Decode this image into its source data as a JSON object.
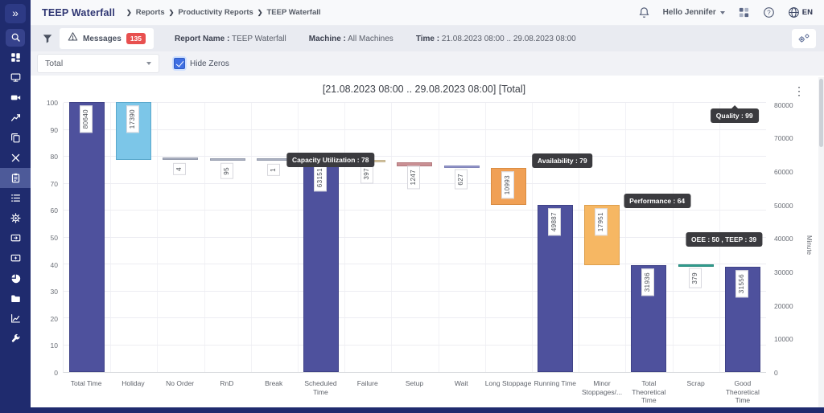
{
  "theme": {
    "sidebar-bg": "#1f2b6e",
    "sidebar-active-bg": "#4d5a99",
    "header-bg": "#f8f9fb",
    "toolbar-bg": "#e9ebf1",
    "page-bg": "#f1f2f6",
    "badge-red": "#e8504f",
    "checkbox-blue": "#3f6fe3",
    "tooltip-bg": "#3b3b3f",
    "title-navy": "#2e3572"
  },
  "header": {
    "title": "TEEP Waterfall",
    "breadcrumb": [
      "Reports",
      "Productivity Reports",
      "TEEP Waterfall"
    ],
    "greeting": "Hello Jennifer",
    "language": "EN"
  },
  "sidebar": {
    "expand_glyph": "»",
    "items": [
      {
        "icon": "search",
        "highlight": true
      },
      {
        "icon": "dashboard"
      },
      {
        "icon": "monitor"
      },
      {
        "icon": "video-camera"
      },
      {
        "icon": "trend-chart"
      },
      {
        "icon": "copy"
      },
      {
        "icon": "tools"
      },
      {
        "icon": "report-clipboard",
        "active": true
      },
      {
        "icon": "list"
      },
      {
        "icon": "settings"
      },
      {
        "icon": "screen-session"
      },
      {
        "icon": "screen-add"
      },
      {
        "icon": "pie-chart"
      },
      {
        "icon": "folder"
      },
      {
        "icon": "analytics"
      },
      {
        "icon": "wrench"
      }
    ]
  },
  "toolbar": {
    "messages_label": "Messages",
    "messages_count": "135",
    "info": [
      {
        "label": "Report Name :",
        "value": "TEEP Waterfall"
      },
      {
        "label": "Machine :",
        "value": "All Machines"
      },
      {
        "label": "Time :",
        "value": "21.08.2023 08:00 .. 29.08.2023 08:00"
      }
    ]
  },
  "filters": {
    "group_by_value": "Total",
    "hide_zeros_label": "Hide Zeros",
    "hide_zeros_checked": true
  },
  "chart_data": {
    "type": "bar",
    "subtype": "waterfall",
    "title": "[21.08.2023 08:00 .. 29.08.2023 08:00] [Total]",
    "menu_glyph": "⋮",
    "y_left": {
      "min": 0,
      "max": 100,
      "ticks": [
        100,
        90,
        80,
        70,
        60,
        50,
        40,
        30,
        20,
        10,
        0
      ]
    },
    "y_right": {
      "label": "Minute",
      "min": 0,
      "max": 80640,
      "ticks": [
        80000,
        70000,
        60000,
        50000,
        40000,
        30000,
        20000,
        10000,
        0
      ]
    },
    "bars": [
      {
        "category": "Total Time",
        "value": 80640,
        "label": "80640",
        "from": 0,
        "to": 80640,
        "color": "#4e519d",
        "border": "#3f4287"
      },
      {
        "category": "Holiday",
        "value": 17390,
        "label": "17390",
        "from": 80640,
        "to": 63250,
        "color": "#7cc6e8",
        "border": "#5aa8cc"
      },
      {
        "category": "No Order",
        "value": 4,
        "label": "4",
        "from": 63250,
        "to": 63246,
        "color": "#aab0c0",
        "border": "#969cae"
      },
      {
        "category": "RnD",
        "value": 95,
        "label": "95",
        "from": 63246,
        "to": 63151,
        "color": "#aab0c0",
        "border": "#969cae"
      },
      {
        "category": "Break",
        "value": 1,
        "label": "1",
        "from": 63151,
        "to": 63150,
        "color": "#aab0c0",
        "border": "#969cae"
      },
      {
        "category": "Scheduled Time",
        "value": 63151,
        "label": "63151",
        "from": 63151,
        "to": 0,
        "color": "#4e519d",
        "border": "#3f4287"
      },
      {
        "category": "Failure",
        "value": 397,
        "label": "397",
        "from": 63151,
        "to": 62754,
        "color": "#d9c9a5",
        "border": "#c2b28e"
      },
      {
        "category": "Setup",
        "value": 1247,
        "label": "1247",
        "from": 62754,
        "to": 61507,
        "color": "#c98f93",
        "border": "#b47a7e"
      },
      {
        "category": "Wait",
        "value": 627,
        "label": "627",
        "from": 61507,
        "to": 60880,
        "color": "#9598cb",
        "border": "#8184b8"
      },
      {
        "category": "Long Stoppage",
        "value": 10993,
        "label": "10993",
        "from": 60880,
        "to": 49887,
        "color": "#f0a055",
        "border": "#d98c42"
      },
      {
        "category": "Running Time",
        "value": 49887,
        "label": "49887",
        "from": 49887,
        "to": 0,
        "color": "#4e519d",
        "border": "#3f4287"
      },
      {
        "category": "Minor Stoppages/...",
        "value": 17951,
        "label": "17951",
        "from": 49887,
        "to": 31936,
        "color": "#f6b763",
        "border": "#dd9f4e"
      },
      {
        "category": "Total Theoretical Time",
        "value": 31936,
        "label": "31936",
        "from": 31936,
        "to": 0,
        "color": "#4e519d",
        "border": "#3f4287"
      },
      {
        "category": "Scrap",
        "value": 379,
        "label": "379",
        "from": 31936,
        "to": 31557,
        "color": "#2f9e8e",
        "border": "#27897b"
      },
      {
        "category": "Good Theoretical Time",
        "value": 31556,
        "label": "31556",
        "from": 31556,
        "to": 0,
        "color": "#4e519d",
        "border": "#3f4287"
      }
    ],
    "tooltips": [
      {
        "text": "Capacity Utilization : 78",
        "left_pct": 38,
        "top_pct": 18.6,
        "arrow": false
      },
      {
        "text": "Availability : 79",
        "left_pct": 71,
        "top_pct": 18.9,
        "arrow": false
      },
      {
        "text": "Performance : 64",
        "left_pct": 84.5,
        "top_pct": 33.6,
        "arrow": false
      },
      {
        "text": "OEE : 50 , TEEP : 39",
        "left_pct": 94,
        "top_pct": 48,
        "arrow": false
      },
      {
        "text": "Quality : 99",
        "left_pct": 95.5,
        "top_pct": 2,
        "arrow": true
      }
    ]
  }
}
